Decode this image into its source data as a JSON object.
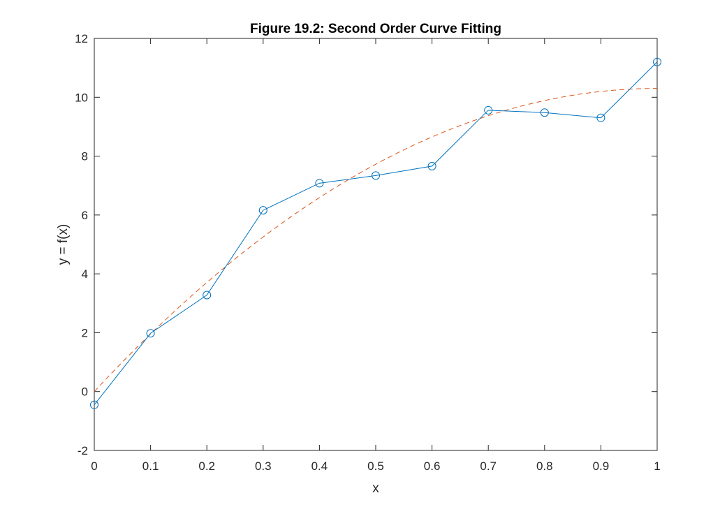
{
  "chart_data": {
    "type": "line",
    "title": "Figure 19.2: Second Order Curve Fitting",
    "xlabel": "x",
    "ylabel": "y = f(x)",
    "xlim": [
      0,
      1
    ],
    "ylim": [
      -2,
      12
    ],
    "xticks": [
      "0",
      "0.1",
      "0.2",
      "0.3",
      "0.4",
      "0.5",
      "0.6",
      "0.7",
      "0.8",
      "0.9",
      "1"
    ],
    "yticks": [
      "-2",
      "0",
      "2",
      "4",
      "6",
      "8",
      "10",
      "12"
    ],
    "grid": false,
    "legend": "none",
    "series": [
      {
        "style": "solid-line-circle-markers",
        "color": "#0072BD",
        "x": [
          0,
          0.1,
          0.2,
          0.3,
          0.4,
          0.5,
          0.6,
          0.7,
          0.8,
          0.9,
          1.0
        ],
        "y": [
          -0.45,
          1.98,
          3.28,
          6.16,
          7.08,
          7.34,
          7.66,
          9.56,
          9.48,
          9.3,
          11.2
        ]
      },
      {
        "style": "dashed-line",
        "color": "#D95319",
        "fit": "quadratic",
        "coefficients": [
          -10.3,
          20.6,
          0.0
        ],
        "x": [
          0,
          0.1,
          0.2,
          0.3,
          0.4,
          0.5,
          0.6,
          0.7,
          0.8,
          0.9,
          1.0
        ],
        "y": [
          0.0,
          1.96,
          3.71,
          5.25,
          6.59,
          7.73,
          8.65,
          9.37,
          9.89,
          10.2,
          10.3
        ]
      }
    ]
  }
}
